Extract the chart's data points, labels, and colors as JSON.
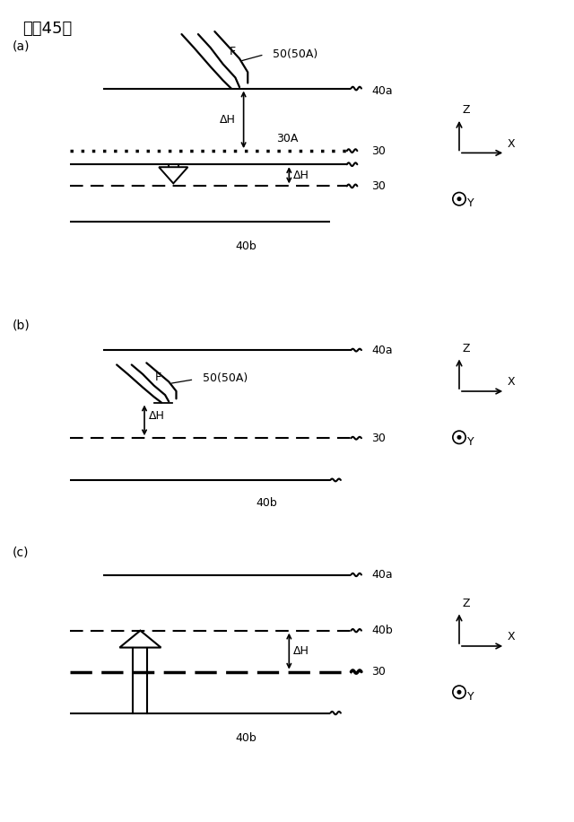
{
  "title": "『図45』",
  "bg_color": "#ffffff",
  "panel_a_label": "(a)",
  "panel_b_label": "(b)",
  "panel_c_label": "(c)",
  "color": "black"
}
